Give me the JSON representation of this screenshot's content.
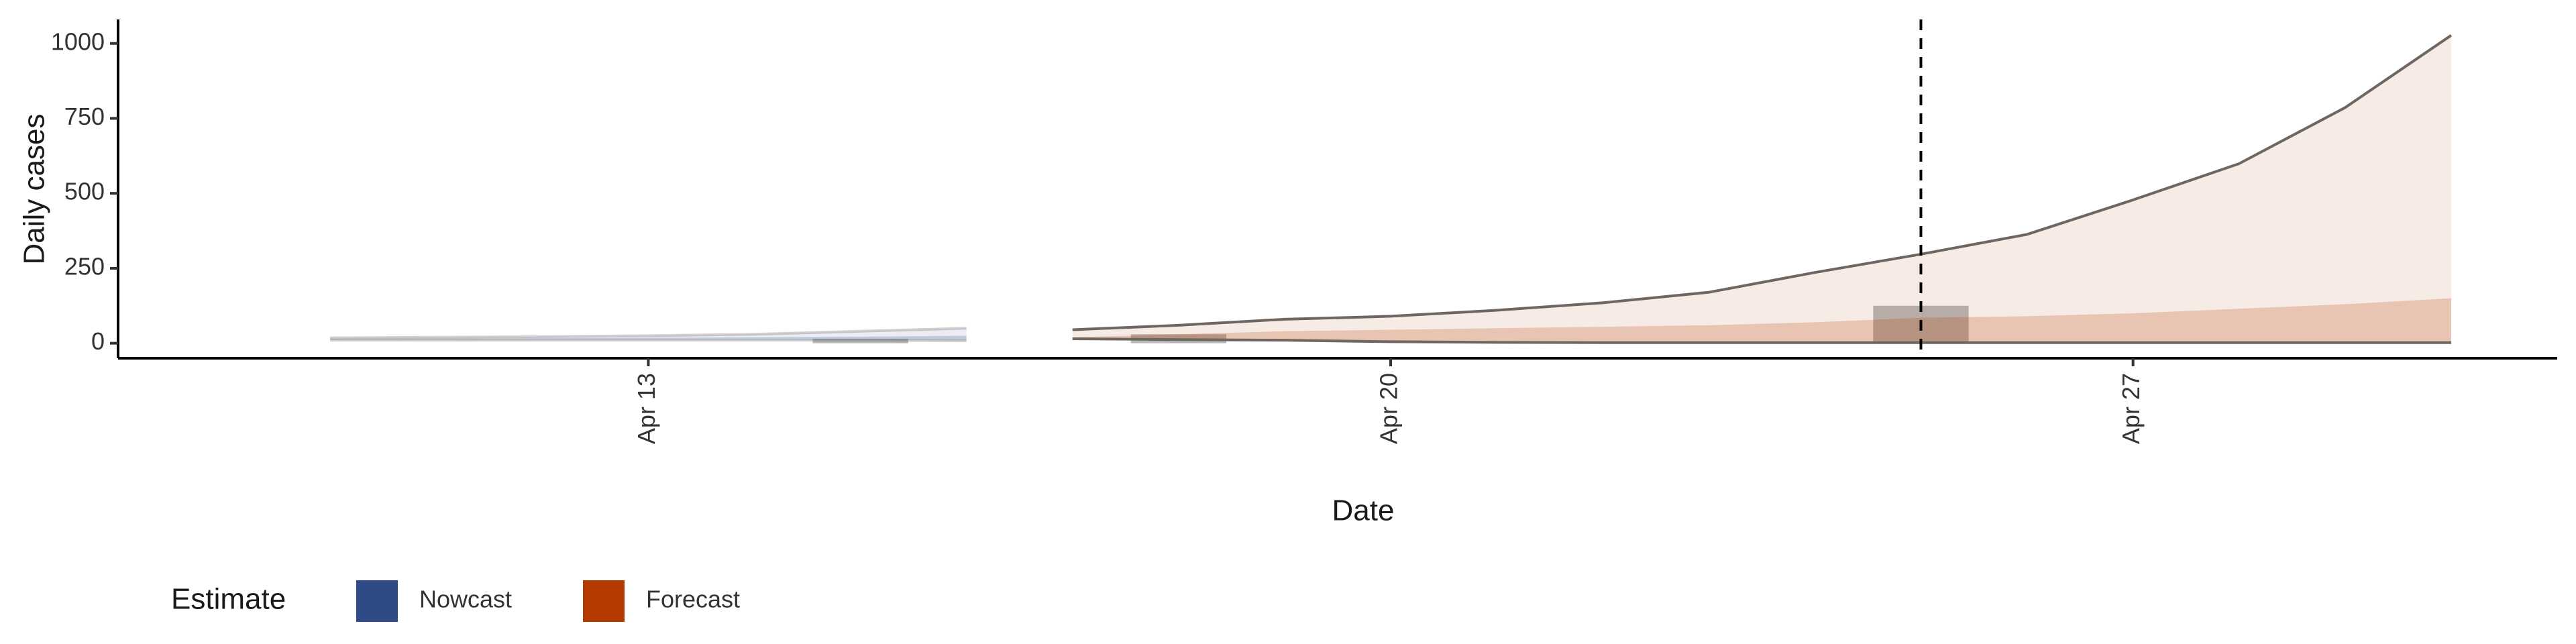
{
  "chart_data": {
    "type": "ribbon",
    "y_label": "Daily cases",
    "x_label": "Date",
    "legend_title": "Estimate",
    "xlim": [
      "Apr 8",
      "May 1"
    ],
    "xticks": [
      "Apr 13",
      "Apr 20",
      "Apr 27"
    ],
    "ylim": [
      -50,
      1080
    ],
    "yticks": [
      0,
      250,
      500,
      750,
      1000
    ],
    "vline": "Apr 25",
    "series": [
      {
        "name": "Nowcast",
        "color": "#2e4a87",
        "x": [
          "Apr 10",
          "Apr 11",
          "Apr 12",
          "Apr 13",
          "Apr 14",
          "Apr 15",
          "Apr 16"
        ],
        "bands": [
          {
            "lower": [
              10,
              10,
              10,
              10,
              10,
              10,
              8
            ],
            "upper": [
              18,
              20,
              22,
              25,
              30,
              40,
              50
            ]
          },
          {
            "lower": [
              12,
              12,
              12,
              12,
              12,
              12,
              10
            ],
            "upper": [
              15,
              16,
              17,
              18,
              20,
              22,
              25
            ]
          }
        ]
      },
      {
        "name": "Forecast",
        "color": "#b53a00",
        "x": [
          "Apr 17",
          "Apr 18",
          "Apr 19",
          "Apr 20",
          "Apr 21",
          "Apr 22",
          "Apr 23",
          "Apr 24",
          "Apr 25",
          "Apr 26",
          "Apr 27",
          "Apr 28",
          "Apr 29",
          "Apr 30"
        ],
        "bands": [
          {
            "lower": [
              15,
              12,
              10,
              5,
              3,
              2,
              2,
              2,
              2,
              2,
              2,
              2,
              2,
              2
            ],
            "upper": [
              45,
              60,
              80,
              90,
              110,
              135,
              170,
              236,
              297,
              363,
              478,
              599,
              786,
              1027
            ]
          },
          {
            "lower": [
              10,
              10,
              8,
              5,
              4,
              3,
              3,
              3,
              2,
              2,
              2,
              2,
              2,
              2
            ],
            "upper": [
              20,
              30,
              40,
              45,
              50,
              55,
              60,
              70,
              85,
              90,
              100,
              115,
              130,
              150
            ]
          }
        ]
      }
    ],
    "reported": {
      "color": "#808080",
      "x": [
        "Apr 15",
        "Apr 18",
        "Apr 25"
      ],
      "values": [
        15,
        30,
        125
      ]
    }
  }
}
